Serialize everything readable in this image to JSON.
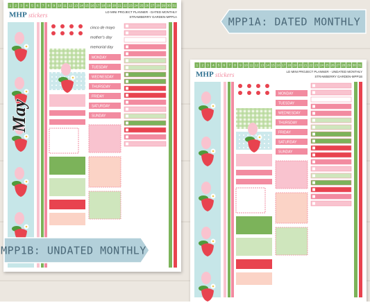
{
  "labels": {
    "dated": "MPP1A: DATED MONTHLY",
    "undated": "MPP1B: UNDATED MONTHLY"
  },
  "sheets": [
    {
      "brand": "MHP",
      "brand_suffix": "stickers",
      "title": "LD MINI PROJECT PLANNER - DATED MONTHLY",
      "subtitle": "STRAWBERRY GARDEN-MPP1A",
      "month": "May",
      "holidays": [
        "cinco de mayo",
        "mother's day",
        "memorial day"
      ],
      "days": [
        "MONDAY",
        "TUESDAY",
        "WEDNESDAY",
        "THURSDAY",
        "FRIDAY",
        "SATURDAY",
        "SUNDAY"
      ],
      "dates": [
        1,
        2,
        3,
        4,
        5,
        6,
        7,
        8,
        9,
        10,
        11,
        12,
        13,
        14,
        15,
        16,
        17,
        18,
        19,
        20,
        21,
        22,
        23,
        24,
        25,
        26,
        27,
        28,
        29,
        30,
        31
      ]
    },
    {
      "brand": "MHP",
      "brand_suffix": "stickers",
      "title": "LD MINI PROJECT PLANNER - UNDATED MONTHLY",
      "subtitle": "STRAWBERRY GARDEN-MPP1B",
      "days": [
        "MONDAY",
        "TUESDAY",
        "WEDNESDAY",
        "THURSDAY",
        "FRIDAY",
        "SATURDAY",
        "SUNDAY"
      ],
      "dates": [
        1,
        2,
        3,
        4,
        5,
        6,
        7,
        8,
        9,
        10,
        11,
        12,
        13,
        14,
        15,
        16,
        17,
        18,
        19,
        20,
        21,
        22,
        23,
        24,
        25,
        26,
        27,
        28,
        29,
        30,
        31
      ]
    }
  ]
}
